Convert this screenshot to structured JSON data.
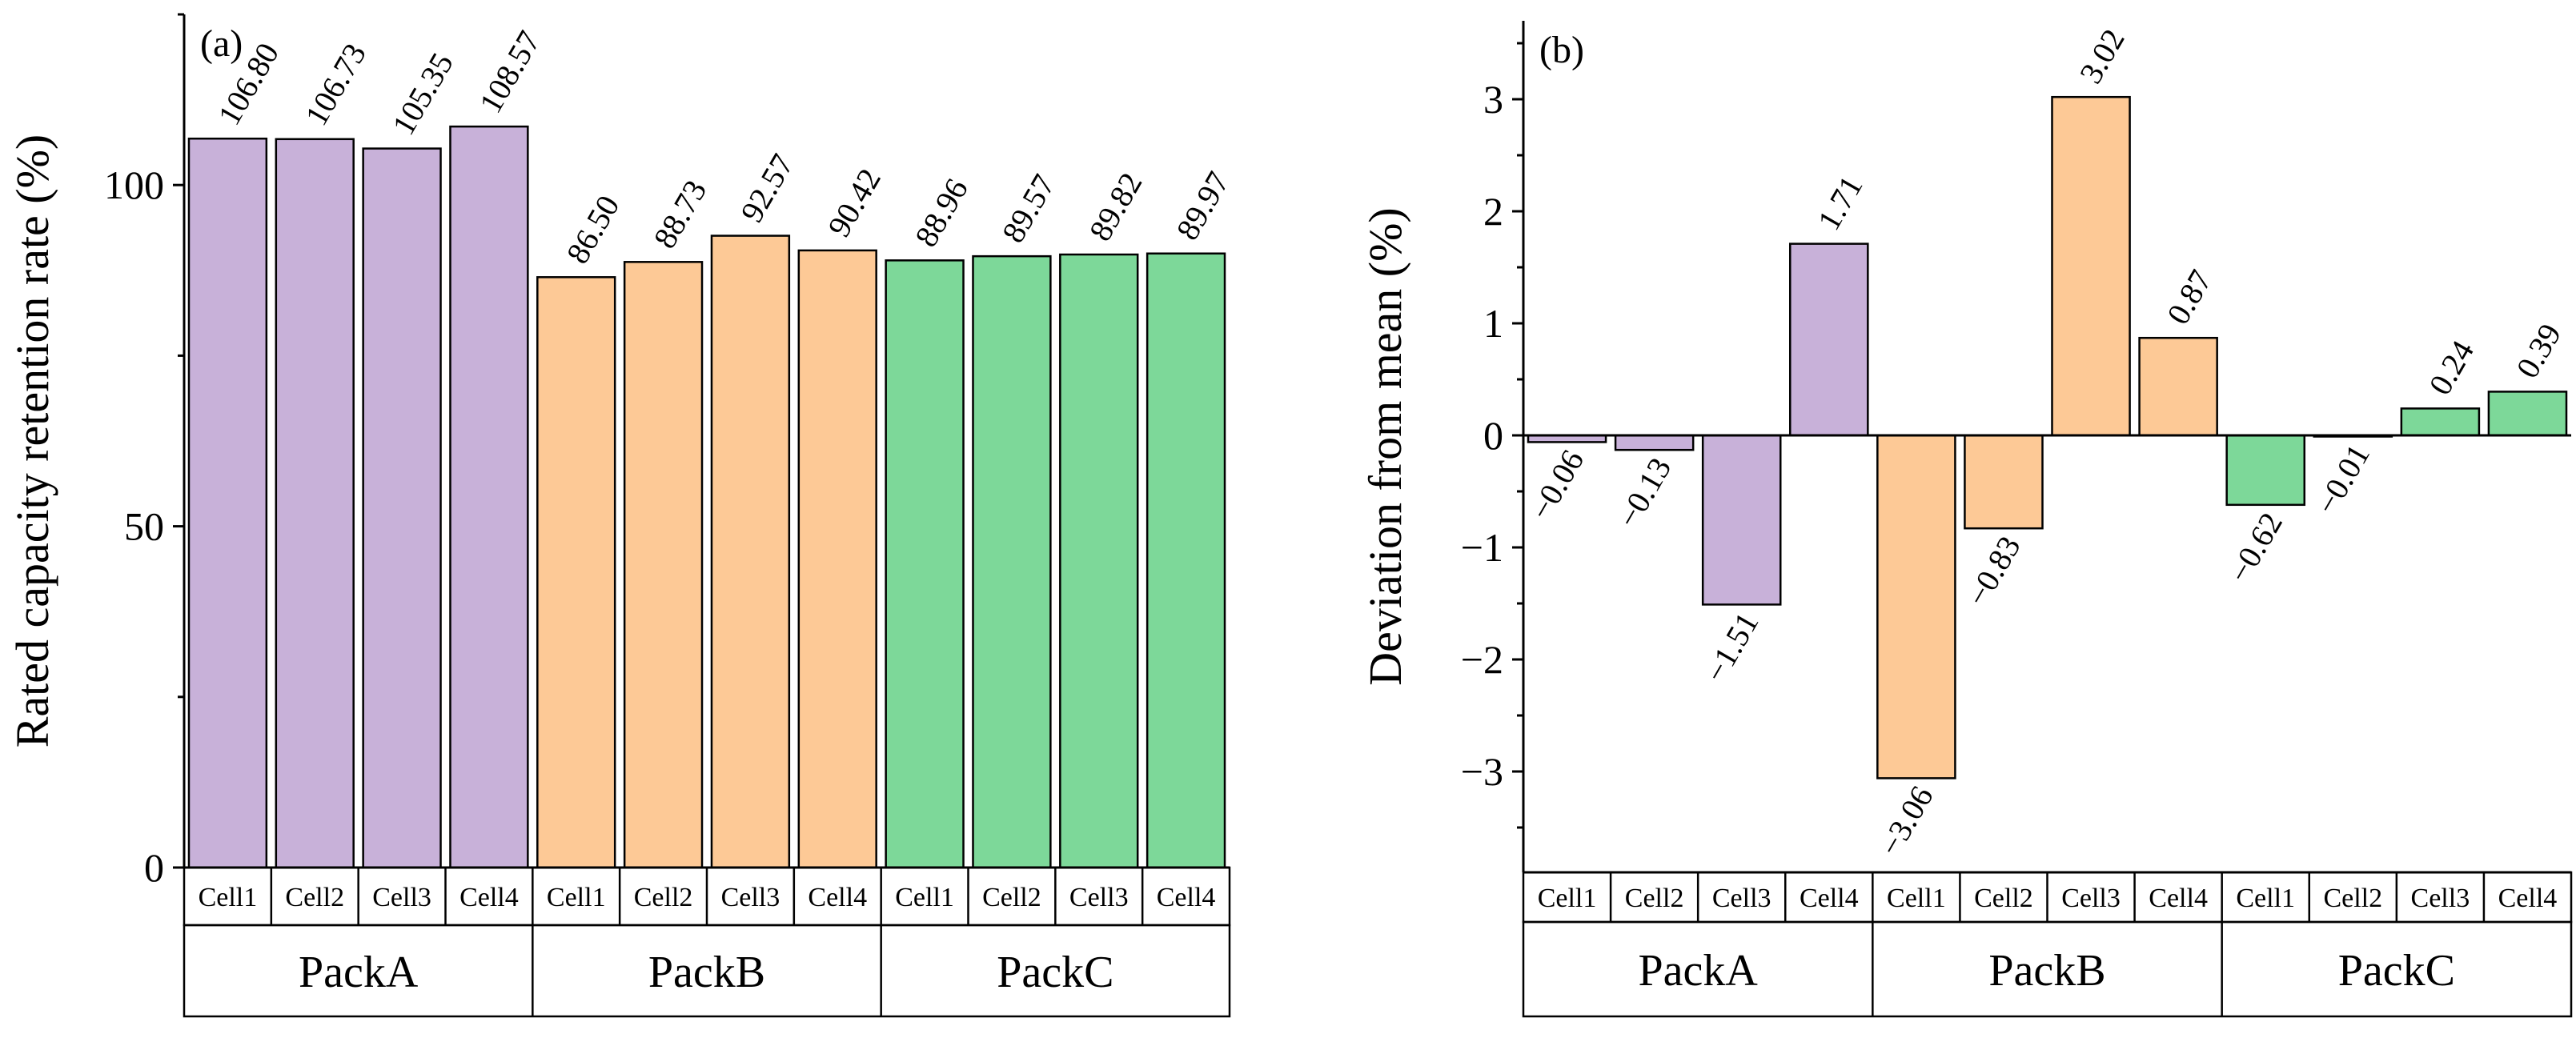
{
  "colors": {
    "PackA": "#c8b1d9",
    "PackB": "#fdc996",
    "PackC": "#7dd899"
  },
  "chart_data": [
    {
      "type": "bar",
      "panel_label": "(a)",
      "title": "",
      "xlabel": "",
      "ylabel": "Rated capacity retention rate (%)",
      "ylim": [
        0,
        125
      ],
      "yticks": [
        0,
        50,
        100
      ],
      "ytick_labels": [
        "0",
        "50",
        "100"
      ],
      "groups": [
        "PackA",
        "PackB",
        "PackC"
      ],
      "categories": [
        "Cell1",
        "Cell2",
        "Cell3",
        "Cell4"
      ],
      "series": [
        {
          "name": "PackA",
          "values": [
            106.8,
            106.73,
            105.35,
            108.57
          ],
          "labels": [
            "106.80",
            "106.73",
            "105.35",
            "108.57"
          ]
        },
        {
          "name": "PackB",
          "values": [
            86.5,
            88.73,
            92.57,
            90.42
          ],
          "labels": [
            "86.50",
            "88.73",
            "92.57",
            "90.42"
          ]
        },
        {
          "name": "PackC",
          "values": [
            88.96,
            89.57,
            89.82,
            89.97
          ],
          "labels": [
            "88.96",
            "89.57",
            "89.82",
            "89.97"
          ]
        }
      ]
    },
    {
      "type": "bar",
      "panel_label": "(b)",
      "title": "",
      "xlabel": "",
      "ylabel": "Deviation from mean (%)",
      "ylim": [
        -3.9,
        3.7
      ],
      "yticks": [
        -3,
        -2,
        -1,
        0,
        1,
        2,
        3
      ],
      "ytick_labels": [
        "−3",
        "−2",
        "−1",
        "0",
        "1",
        "2",
        "3"
      ],
      "groups": [
        "PackA",
        "PackB",
        "PackC"
      ],
      "categories": [
        "Cell1",
        "Cell2",
        "Cell3",
        "Cell4"
      ],
      "series": [
        {
          "name": "PackA",
          "values": [
            -0.06,
            -0.13,
            -1.51,
            1.71
          ],
          "labels": [
            "−0.06",
            "−0.13",
            "−1.51",
            "1.71"
          ]
        },
        {
          "name": "PackB",
          "values": [
            -3.06,
            -0.83,
            3.02,
            0.87
          ],
          "labels": [
            "−3.06",
            "−0.83",
            "3.02",
            "0.87"
          ]
        },
        {
          "name": "PackC",
          "values": [
            -0.62,
            -0.01,
            0.24,
            0.39
          ],
          "labels": [
            "−0.62",
            "−0.01",
            "0.24",
            "0.39"
          ]
        }
      ]
    }
  ]
}
